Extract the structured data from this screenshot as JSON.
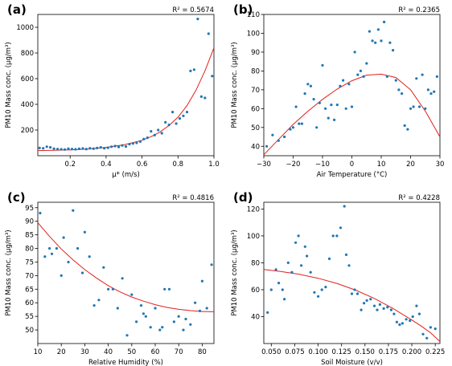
{
  "colors": {
    "points": "#1f77b4",
    "fit": "#e0201c"
  },
  "chart_data": [
    {
      "type": "scatter",
      "panel_label": "(a)",
      "r2": "R² = 0.5674",
      "xlabel": "μ* (m/s)",
      "ylabel": "PM10 Mass conc. (μg/m³)",
      "xlim": [
        0.02,
        1.0
      ],
      "ylim": [
        0,
        1100
      ],
      "xticks": [
        0.2,
        0.4,
        0.6,
        0.8,
        1.0
      ],
      "xtick_labels": [
        "0.2",
        "0.4",
        "0.6",
        "0.8",
        "1.0"
      ],
      "yticks": [
        200,
        400,
        600,
        800,
        1000
      ],
      "ytick_labels": [
        "200",
        "400",
        "600",
        "800",
        "1000"
      ],
      "x": [
        0.03,
        0.05,
        0.07,
        0.09,
        0.11,
        0.13,
        0.15,
        0.17,
        0.19,
        0.21,
        0.23,
        0.25,
        0.27,
        0.29,
        0.31,
        0.33,
        0.35,
        0.37,
        0.39,
        0.41,
        0.43,
        0.45,
        0.47,
        0.49,
        0.51,
        0.53,
        0.55,
        0.57,
        0.59,
        0.61,
        0.63,
        0.65,
        0.67,
        0.69,
        0.71,
        0.73,
        0.75,
        0.77,
        0.79,
        0.81,
        0.83,
        0.85,
        0.87,
        0.89,
        0.91,
        0.93,
        0.95,
        0.97,
        0.99
      ],
      "y": [
        60,
        58,
        70,
        65,
        55,
        52,
        50,
        48,
        55,
        52,
        50,
        54,
        56,
        52,
        58,
        55,
        60,
        65,
        58,
        62,
        70,
        75,
        68,
        80,
        72,
        90,
        95,
        100,
        110,
        130,
        140,
        190,
        160,
        200,
        175,
        260,
        240,
        340,
        250,
        290,
        310,
        340,
        660,
        670,
        1065,
        460,
        450,
        950,
        620
      ],
      "fit_x": [
        0.02,
        0.1,
        0.2,
        0.3,
        0.4,
        0.5,
        0.6,
        0.65,
        0.7,
        0.75,
        0.8,
        0.85,
        0.9,
        0.95,
        1.0
      ],
      "fit_y": [
        40,
        42,
        45,
        52,
        65,
        85,
        120,
        148,
        185,
        235,
        300,
        390,
        510,
        660,
        840
      ]
    },
    {
      "type": "scatter",
      "panel_label": "(b)",
      "r2": "R² = 0.2365",
      "xlabel": "Air Temperature (°C)",
      "ylabel": "PM10 Mass conc. (μg/m³)",
      "xlim": [
        -30,
        30
      ],
      "ylim": [
        35,
        110
      ],
      "xticks": [
        -30,
        -20,
        -10,
        0,
        10,
        20,
        30
      ],
      "xtick_labels": [
        "−30",
        "−20",
        "−10",
        "0",
        "10",
        "20",
        "30"
      ],
      "yticks": [
        40,
        50,
        60,
        70,
        80,
        90,
        100,
        110
      ],
      "ytick_labels": [
        "40",
        "50",
        "60",
        "70",
        "80",
        "90",
        "100",
        "110"
      ],
      "x": [
        -29,
        -27,
        -25,
        -23,
        -21,
        -20,
        -19,
        -18,
        -17,
        -16,
        -15,
        -14,
        -13,
        -12,
        -11,
        -10,
        -9,
        -8,
        -7,
        -6,
        -5,
        -4,
        -3,
        -2,
        -1,
        0,
        1,
        2,
        3,
        4,
        5,
        6,
        7,
        8,
        9,
        10,
        11,
        12,
        13,
        14,
        15,
        16,
        17,
        18,
        19,
        20,
        21,
        22,
        23,
        24,
        25,
        26,
        27,
        28,
        29
      ],
      "y": [
        40,
        46,
        43,
        45,
        49,
        50,
        61,
        52,
        52,
        68,
        73,
        72,
        65,
        50,
        63,
        83,
        60,
        55,
        62,
        54,
        62,
        72,
        75,
        60,
        73,
        61,
        90,
        78,
        80,
        77,
        84,
        101,
        96,
        95,
        102,
        96,
        106,
        77,
        95,
        91,
        75,
        70,
        68,
        51,
        49,
        60,
        61,
        76,
        61,
        78,
        60,
        70,
        68,
        69,
        77
      ],
      "fit_x": [
        -30,
        -25,
        -20,
        -15,
        -10,
        -5,
        0,
        5,
        10,
        15,
        20,
        25,
        30
      ],
      "fit_y": [
        35.5,
        43.6,
        51.6,
        58.6,
        64.9,
        70.4,
        74.8,
        77.8,
        78.3,
        76.5,
        70.0,
        58.7,
        45.0
      ]
    },
    {
      "type": "scatter",
      "panel_label": "(c)",
      "r2": "R² = 0.4816",
      "xlabel": "Relative Humidity (%)",
      "ylabel": "PM10 Mass conc. (μg/m³)",
      "xlim": [
        10,
        85
      ],
      "ylim": [
        45,
        97
      ],
      "xticks": [
        10,
        20,
        30,
        40,
        50,
        60,
        70,
        80
      ],
      "xtick_labels": [
        "10",
        "20",
        "30",
        "40",
        "50",
        "60",
        "70",
        "80"
      ],
      "yticks": [
        50,
        55,
        60,
        65,
        70,
        75,
        80,
        85,
        90,
        95
      ],
      "ytick_labels": [
        "50",
        "55",
        "60",
        "65",
        "70",
        "75",
        "80",
        "85",
        "90",
        "95"
      ],
      "x": [
        11,
        13,
        15,
        16,
        18,
        20,
        21,
        23,
        25,
        27,
        29,
        30,
        32,
        34,
        36,
        38,
        40,
        42,
        44,
        46,
        48,
        50,
        52,
        54,
        55,
        56,
        58,
        60,
        62,
        63,
        64,
        66,
        68,
        70,
        72,
        73,
        75,
        77,
        79,
        80,
        82,
        84
      ],
      "y": [
        93,
        77,
        80,
        78,
        80,
        70,
        84,
        75,
        94,
        80,
        71,
        86,
        77,
        59,
        61,
        73,
        65,
        65,
        58,
        69,
        48,
        63,
        53,
        59,
        56,
        55,
        51,
        58,
        50,
        51,
        65,
        65,
        53,
        55,
        50,
        54,
        52,
        60,
        57,
        68,
        58,
        74
      ],
      "fit_x": [
        10,
        15,
        20,
        25,
        30,
        35,
        40,
        45,
        50,
        55,
        60,
        65,
        70,
        75,
        80,
        85
      ],
      "fit_y": [
        89.5,
        84.4,
        79.8,
        75.8,
        72.2,
        69.1,
        66.3,
        64.0,
        62.1,
        60.6,
        59.3,
        58.3,
        57.6,
        57.1,
        56.8,
        56.7
      ]
    },
    {
      "type": "scatter",
      "panel_label": "(d)",
      "r2": "R² = 0.4228",
      "xlabel": "Soil Moisture (v/v)",
      "ylabel": "PM10 Mass conc. (μg/m³)",
      "xlim": [
        0.042,
        0.23
      ],
      "ylim": [
        20,
        125
      ],
      "xticks": [
        0.05,
        0.075,
        0.1,
        0.125,
        0.15,
        0.175,
        0.2,
        0.225
      ],
      "xtick_labels": [
        "0.050",
        "0.075",
        "0.100",
        "0.125",
        "0.150",
        "0.175",
        "0.200",
        "0.225"
      ],
      "yticks": [
        40,
        60,
        80,
        100,
        120
      ],
      "ytick_labels": [
        "40",
        "60",
        "80",
        "100",
        "120"
      ],
      "x": [
        0.046,
        0.05,
        0.055,
        0.058,
        0.062,
        0.064,
        0.068,
        0.072,
        0.076,
        0.079,
        0.082,
        0.086,
        0.088,
        0.092,
        0.096,
        0.1,
        0.104,
        0.108,
        0.112,
        0.116,
        0.12,
        0.124,
        0.128,
        0.13,
        0.133,
        0.136,
        0.139,
        0.142,
        0.146,
        0.149,
        0.152,
        0.156,
        0.16,
        0.163,
        0.166,
        0.17,
        0.174,
        0.178,
        0.181,
        0.184,
        0.187,
        0.19,
        0.194,
        0.198,
        0.201,
        0.205,
        0.208,
        0.212,
        0.216,
        0.22,
        0.225
      ],
      "y": [
        43,
        60,
        75,
        65,
        60,
        53,
        80,
        73,
        95,
        100,
        78,
        92,
        85,
        73,
        58,
        55,
        60,
        62,
        83,
        100,
        100,
        106,
        122,
        86,
        78,
        57,
        60,
        57,
        45,
        50,
        52,
        53,
        48,
        45,
        49,
        46,
        47,
        45,
        42,
        36,
        34,
        35,
        38,
        37,
        40,
        48,
        42,
        27,
        24,
        32,
        31
      ],
      "fit_x": [
        0.042,
        0.06,
        0.08,
        0.1,
        0.12,
        0.14,
        0.16,
        0.18,
        0.2,
        0.21,
        0.22,
        0.23
      ],
      "fit_y": [
        75,
        73.5,
        71.4,
        68.5,
        64.7,
        59.7,
        53.5,
        46,
        37.5,
        33,
        28,
        21.5
      ]
    }
  ]
}
